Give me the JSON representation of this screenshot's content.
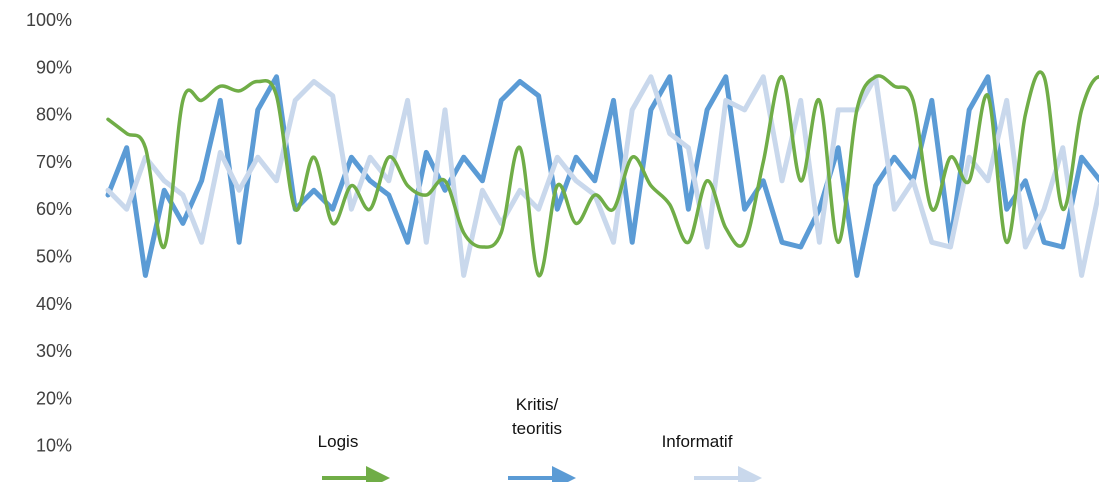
{
  "chart_data": {
    "type": "line",
    "title": "",
    "xlabel": "",
    "ylabel": "",
    "ylim": [
      0,
      100
    ],
    "yticks": [
      "10%",
      "20%",
      "30%",
      "40%",
      "50%",
      "60%",
      "70%",
      "80%",
      "90%",
      "100%"
    ],
    "grid": false,
    "legend_position": "bottom",
    "series": [
      {
        "name": "Logis",
        "color": "#70ad47",
        "smooth": true,
        "values": [
          79,
          76,
          73,
          52,
          83,
          83,
          86,
          85,
          87,
          84,
          60,
          71,
          57,
          65,
          60,
          71,
          65,
          63,
          66,
          55,
          52,
          55,
          73,
          46,
          65,
          57,
          63,
          60,
          71,
          65,
          61,
          53,
          66,
          56,
          53,
          70,
          88,
          66,
          83,
          53,
          81,
          88,
          86,
          83,
          60,
          71,
          66,
          84,
          53,
          80,
          88,
          60,
          81,
          88,
          80
        ]
      },
      {
        "name": "Kritis/ teoritis",
        "color": "#5b9bd5",
        "smooth": false,
        "values": [
          63,
          73,
          46,
          64,
          57,
          66,
          83,
          53,
          81,
          88,
          60,
          64,
          60,
          71,
          66,
          63,
          53,
          72,
          64,
          71,
          66,
          83,
          87,
          84,
          60,
          71,
          66,
          83,
          53,
          81,
          88,
          60,
          81,
          88,
          60,
          66,
          53,
          52,
          60,
          73,
          46,
          65,
          71,
          66,
          83,
          53,
          81,
          88,
          60,
          66,
          53,
          52,
          71,
          66,
          77
        ]
      },
      {
        "name": "Informatif",
        "color": "#c9d8ec",
        "smooth": false,
        "values": [
          64,
          60,
          71,
          66,
          63,
          53,
          72,
          64,
          71,
          66,
          83,
          87,
          84,
          60,
          71,
          66,
          83,
          53,
          81,
          46,
          64,
          57,
          64,
          60,
          71,
          66,
          63,
          53,
          81,
          88,
          76,
          73,
          52,
          83,
          81,
          88,
          66,
          83,
          53,
          81,
          81,
          88,
          60,
          66,
          53,
          52,
          71,
          66,
          83,
          52,
          60,
          73,
          46,
          65,
          58
        ]
      }
    ]
  }
}
